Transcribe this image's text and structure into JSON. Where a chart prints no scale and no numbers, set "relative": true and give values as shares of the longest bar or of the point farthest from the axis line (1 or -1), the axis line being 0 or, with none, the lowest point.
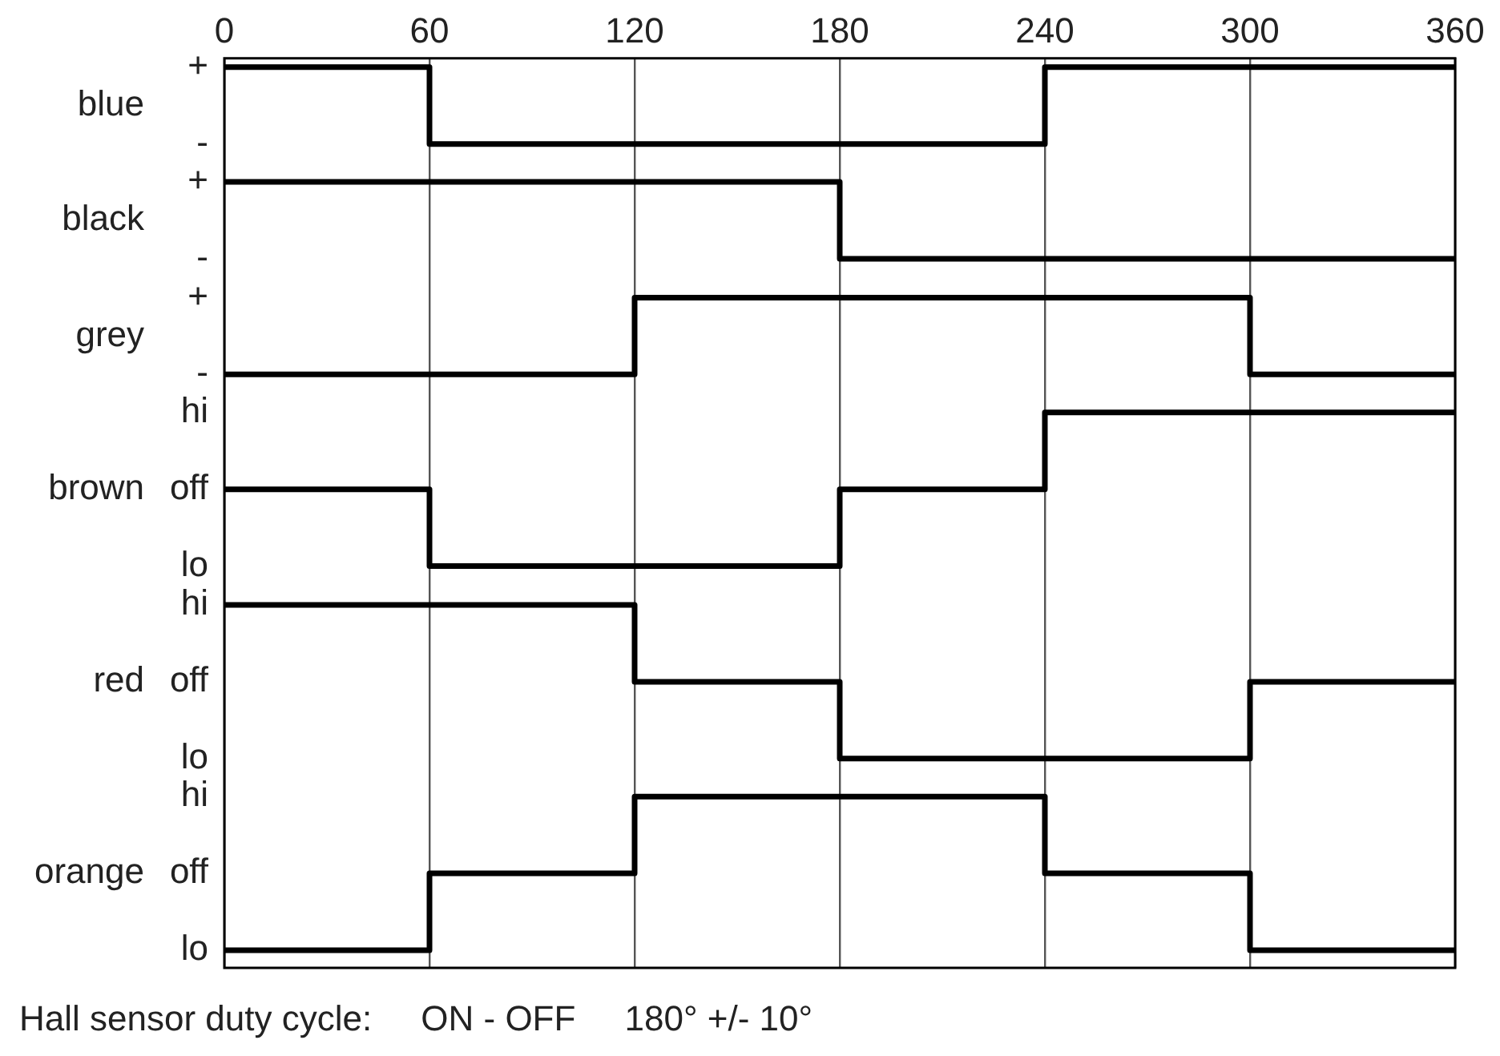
{
  "chart_data": {
    "type": "step",
    "relative": true,
    "x": [
      0,
      60,
      120,
      180,
      240,
      300,
      360
    ],
    "xlim": [
      0,
      360
    ],
    "xticks": [
      0,
      60,
      120,
      180,
      240,
      300,
      360
    ],
    "series": [
      {
        "name": "blue",
        "color": "#000000",
        "values": [
          1,
          0.913,
          0.913,
          0.913,
          1,
          1,
          1
        ]
      },
      {
        "name": "black",
        "color": "#000000",
        "values": [
          0.87,
          0.87,
          0.87,
          0.783,
          0.783,
          0.783,
          0.783
        ]
      },
      {
        "name": "grey",
        "color": "#000000",
        "values": [
          0.652,
          0.652,
          0.739,
          0.739,
          0.739,
          0.652,
          0.652
        ]
      },
      {
        "name": "brown",
        "color": "#000000",
        "values": [
          0.522,
          0.435,
          0.435,
          0.522,
          0.609,
          0.609,
          0.609
        ]
      },
      {
        "name": "red",
        "color": "#000000",
        "values": [
          0.391,
          0.391,
          0.304,
          0.217,
          0.217,
          0.304,
          0.304
        ]
      },
      {
        "name": "orange",
        "color": "#000000",
        "values": [
          0,
          0.087,
          0.174,
          0.174,
          0.087,
          0,
          0
        ]
      }
    ],
    "grid": "x",
    "legend": false,
    "marker": "none",
    "line_style": "solid",
    "annotations": [
      "+",
      "-",
      "+",
      "-",
      "+",
      "-",
      "hi",
      "off",
      "lo",
      "hi",
      "off",
      "lo",
      "hi",
      "off",
      "lo",
      "Hall sensor duty cycle:     ON - OFF     180° +/- 10°"
    ]
  }
}
